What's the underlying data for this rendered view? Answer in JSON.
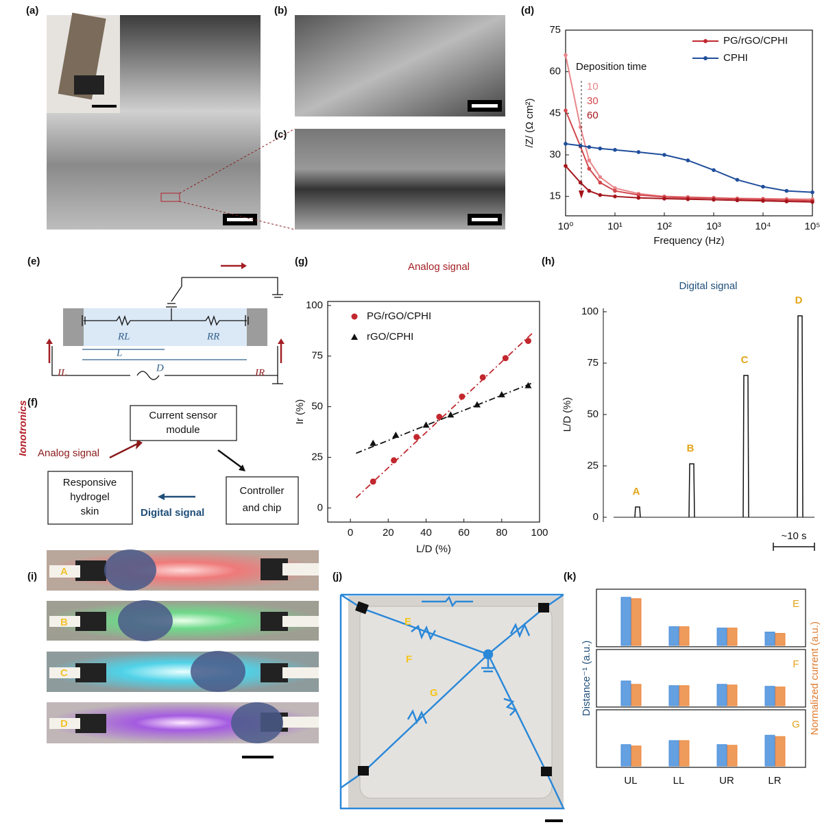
{
  "panel_labels": [
    "(a)",
    "(b)",
    "(c)",
    "(d)",
    "(e)",
    "(f)",
    "(g)",
    "(h)",
    "(i)",
    "(j)",
    "(k)"
  ],
  "side_title": "Ionotronics",
  "circuit": {
    "resistor_left": "RL",
    "resistor_right": "RR",
    "length": "L",
    "distance": "D",
    "current_left": "IL",
    "current_right": "IR"
  },
  "flow": {
    "sensor": [
      "Current sensor",
      "module"
    ],
    "skin": [
      "Responsive",
      "hydrogel",
      "skin"
    ],
    "controller": [
      "Controller",
      "and chip"
    ],
    "analog": "Analog signal",
    "digital": "Digital signal"
  },
  "photos_i": [
    "A",
    "B",
    "C",
    "D"
  ],
  "photos_j": [
    "E",
    "F",
    "G"
  ],
  "chart_data": [
    {
      "type": "line",
      "x_label": "Frequency (Hz)",
      "y_label": "/Z/ (Ω cm²)",
      "log_x": true,
      "x": [
        1,
        2,
        3,
        5,
        10,
        30,
        100,
        300,
        1000,
        3000,
        10000,
        30000,
        100000
      ],
      "xlim": [
        1,
        100000
      ],
      "xticks": [
        {
          "value": 1,
          "label": "10⁰"
        },
        {
          "value": 10,
          "label": "10¹"
        },
        {
          "value": 100,
          "label": "10²"
        },
        {
          "value": 1000,
          "label": "10³"
        },
        {
          "value": 10000,
          "label": "10⁴"
        },
        {
          "value": 100000,
          "label": "10⁵"
        }
      ],
      "ylim": [
        8,
        75
      ],
      "yticks": [
        15,
        30,
        45,
        60,
        75
      ],
      "annotation": "Deposition time",
      "series_group": {
        "name": "PG/rGO/CPHI",
        "color": "#c1272d"
      },
      "series": [
        {
          "name": "10",
          "color": "#e8868a",
          "values": [
            66,
            40,
            28,
            22,
            18,
            16,
            15,
            14.8,
            14.5,
            14.3,
            14.2,
            14.1,
            14
          ]
        },
        {
          "name": "30",
          "color": "#d2474d",
          "values": [
            46,
            33,
            25,
            20,
            17,
            15.5,
            14.8,
            14.5,
            14.4,
            14.1,
            13.9,
            13.7,
            13.5
          ]
        },
        {
          "name": "60",
          "color": "#a5141b",
          "values": [
            26,
            20,
            17,
            15.5,
            15,
            14.5,
            14.2,
            14,
            13.8,
            13.6,
            13.4,
            13.2,
            13
          ]
        },
        {
          "name": "CPHI",
          "color": "#1f4e9c",
          "values": [
            34,
            33.3,
            32.8,
            32.3,
            31.8,
            31,
            30,
            28,
            24.5,
            21,
            18.5,
            17,
            16.5
          ]
        }
      ]
    },
    {
      "type": "scatter",
      "title": "Analog signal",
      "x_label": "L/D (%)",
      "y_label": "Ir (%)",
      "xlim": [
        -12,
        100
      ],
      "xticks": [
        0,
        20,
        40,
        60,
        80,
        100
      ],
      "ylim": [
        -7,
        102
      ],
      "yticks": [
        0,
        25,
        50,
        75,
        100
      ],
      "series": [
        {
          "name": "PG/rGO/CPHI",
          "color": "#c1272d",
          "marker": "circle",
          "x": [
            12,
            23,
            35,
            47,
            59,
            70,
            82,
            94
          ],
          "values": [
            13,
            23.5,
            35,
            45,
            55,
            64.5,
            74,
            82.5
          ],
          "fit": {
            "x": [
              3,
              97
            ],
            "y": [
              5,
              87
            ]
          }
        },
        {
          "name": "rGO/CPHI",
          "color": "#111111",
          "marker": "triangle",
          "x": [
            12,
            24,
            40,
            53,
            67,
            80,
            94
          ],
          "values": [
            32,
            36,
            41,
            46,
            51,
            56,
            60.5
          ],
          "fit": {
            "x": [
              3,
              97
            ],
            "y": [
              27,
              62
            ]
          }
        }
      ]
    },
    {
      "type": "pulse",
      "title": "Digital signal",
      "y_label": "L/D (%)",
      "ylim": [
        -5,
        105
      ],
      "yticks": [
        0,
        25,
        50,
        75,
        100
      ],
      "categories": [
        "A",
        "B",
        "C",
        "D"
      ],
      "values": [
        5,
        26,
        69,
        98
      ],
      "color": "#111111",
      "scale_label": "~10 s"
    },
    {
      "type": "bar",
      "categories": [
        "UL",
        "LL",
        "UR",
        "LR"
      ],
      "ylim": [
        0,
        80
      ],
      "series": [
        {
          "name": "Distance⁻¹ (a.u.)",
          "color": "#4a8fdc"
        },
        {
          "name": "Normalized current (a.u.)",
          "color": "#ec8a3f"
        }
      ],
      "panels": [
        {
          "label": "E",
          "values": [
            [
              72,
              28,
              26,
              20
            ],
            [
              70,
              28,
              26,
              18
            ]
          ]
        },
        {
          "label": "F",
          "values": [
            [
              37,
              30,
              32,
              29
            ],
            [
              32,
              30,
              31,
              28
            ]
          ]
        },
        {
          "label": "G",
          "values": [
            [
              32,
              38,
              32,
              46
            ],
            [
              30,
              38,
              31,
              44
            ]
          ]
        }
      ]
    }
  ]
}
